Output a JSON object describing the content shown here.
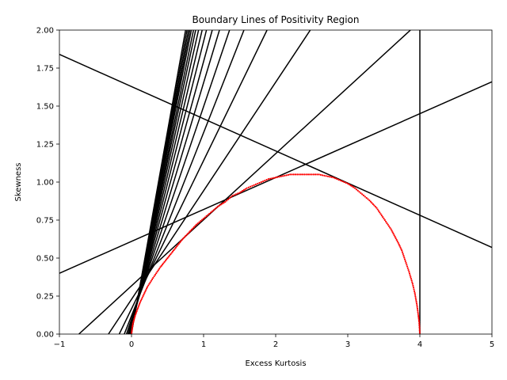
{
  "chart_data": {
    "type": "line",
    "title": "Boundary Lines of Positivity Region",
    "xlabel": "Excess Kurtosis",
    "ylabel": "Skewness",
    "xlim": [
      -1,
      5
    ],
    "ylim": [
      0,
      2
    ],
    "xticks": [
      "−1",
      "0",
      "1",
      "2",
      "3",
      "4",
      "5"
    ],
    "yticks": [
      "0.00",
      "0.25",
      "0.50",
      "0.75",
      "1.00",
      "1.25",
      "1.50",
      "1.75",
      "2.00"
    ],
    "grid": false,
    "series": [
      {
        "kind": "boundary-lines",
        "color": "#000000",
        "lines": [
          {
            "x": [
              -1,
              5
            ],
            "y": [
              1.84,
              0.57
            ]
          },
          {
            "x": [
              -1,
              5
            ],
            "y": [
              0.4,
              1.66
            ]
          },
          {
            "x": [
              -0.73,
              3.87
            ],
            "y": [
              0,
              2
            ]
          },
          {
            "x": [
              -0.32,
              2.48
            ],
            "y": [
              0,
              2
            ]
          },
          {
            "x": [
              -0.17,
              1.88
            ],
            "y": [
              0,
              2
            ]
          },
          {
            "x": [
              -0.1,
              1.56
            ],
            "y": [
              0,
              2
            ]
          },
          {
            "x": [
              -0.07,
              1.36
            ],
            "y": [
              0,
              2
            ]
          },
          {
            "x": [
              -0.05,
              1.22
            ],
            "y": [
              0,
              2
            ]
          },
          {
            "x": [
              -0.04,
              1.12
            ],
            "y": [
              0,
              2
            ]
          },
          {
            "x": [
              -0.03,
              1.04
            ],
            "y": [
              0,
              2
            ]
          },
          {
            "x": [
              -0.025,
              0.98
            ],
            "y": [
              0,
              2
            ]
          },
          {
            "x": [
              -0.02,
              0.93
            ],
            "y": [
              0,
              2
            ]
          },
          {
            "x": [
              -0.015,
              0.89
            ],
            "y": [
              0,
              2
            ]
          },
          {
            "x": [
              -0.012,
              0.86
            ],
            "y": [
              0,
              2
            ]
          },
          {
            "x": [
              -0.01,
              0.83
            ],
            "y": [
              0,
              2
            ]
          },
          {
            "x": [
              -0.008,
              0.81
            ],
            "y": [
              0,
              2
            ]
          },
          {
            "x": [
              -0.006,
              0.79
            ],
            "y": [
              0,
              2
            ]
          },
          {
            "x": [
              -0.004,
              0.77
            ],
            "y": [
              0,
              2
            ]
          },
          {
            "x": [
              -0.002,
              0.75
            ],
            "y": [
              0,
              2
            ]
          },
          {
            "x": [
              4,
              4
            ],
            "y": [
              0,
              2
            ]
          }
        ]
      },
      {
        "kind": "region-boundary-points",
        "color": "#ff0000",
        "x": [
          0,
          0.01,
          0.02,
          0.05,
          0.08,
          0.12,
          0.17,
          0.22,
          0.3,
          0.4,
          0.5,
          0.6,
          0.7,
          0.8,
          0.9,
          1.0,
          1.1,
          1.2,
          1.3,
          1.4,
          1.5,
          1.6,
          1.7,
          1.8,
          1.9,
          2.0,
          2.1,
          2.2,
          2.3,
          2.4,
          2.5,
          2.6,
          2.7,
          2.8,
          2.9,
          3.0,
          3.1,
          3.2,
          3.3,
          3.4,
          3.5,
          3.6,
          3.7,
          3.75,
          3.8,
          3.85,
          3.9,
          3.93,
          3.96,
          3.98,
          3.99,
          4.0
        ],
        "y": [
          0,
          0.04,
          0.07,
          0.12,
          0.16,
          0.21,
          0.26,
          0.31,
          0.37,
          0.44,
          0.5,
          0.56,
          0.62,
          0.67,
          0.72,
          0.76,
          0.8,
          0.84,
          0.87,
          0.91,
          0.93,
          0.96,
          0.98,
          1.0,
          1.02,
          1.03,
          1.04,
          1.05,
          1.05,
          1.05,
          1.05,
          1.05,
          1.04,
          1.03,
          1.01,
          0.99,
          0.96,
          0.92,
          0.88,
          0.83,
          0.76,
          0.69,
          0.6,
          0.55,
          0.48,
          0.41,
          0.33,
          0.27,
          0.19,
          0.12,
          0.08,
          0
        ]
      }
    ]
  }
}
